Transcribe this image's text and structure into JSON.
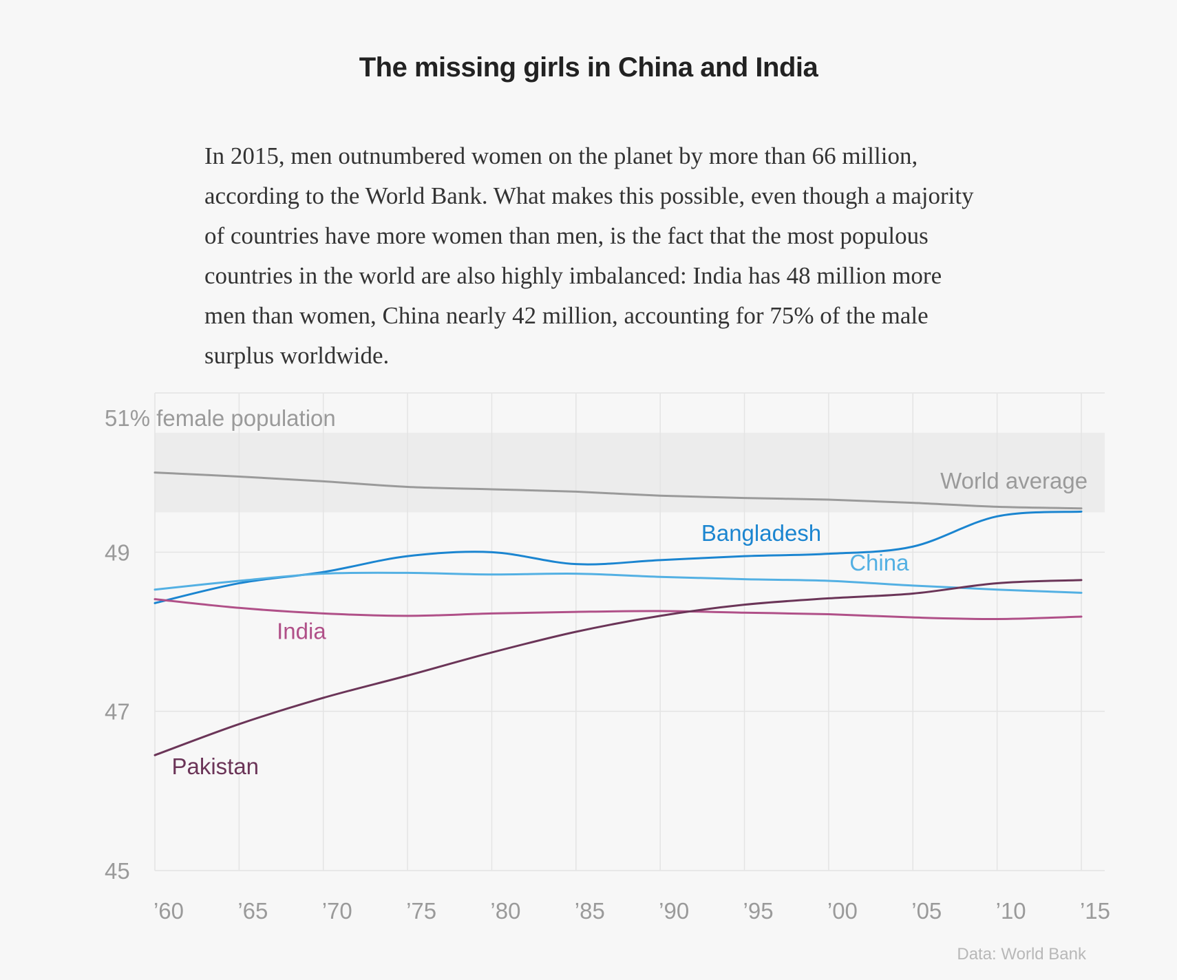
{
  "header": {
    "title": "The missing girls in China and India",
    "dek": "In 2015, men outnumbered women on the planet by more than 66 million, according to the World Bank. What makes this possible, even though a majority of countries have more women than men, is the fact that the most populous countries in the world are also highly imbalanced: India has 48 million more men than women, China nearly 42 million, accounting for 75% of the male surplus worldwide."
  },
  "source": "Data: World Bank",
  "chart_data": {
    "type": "line",
    "title": "The missing girls in China and India",
    "ylabel": "51% female population",
    "ylim": [
      45,
      51
    ],
    "xlim": [
      1960,
      2016.5
    ],
    "grid": true,
    "y_ticks": [
      {
        "value": 45,
        "label": "45"
      },
      {
        "value": 47,
        "label": "47"
      },
      {
        "value": 49,
        "label": "49"
      }
    ],
    "x_ticks": [
      {
        "value": 1960,
        "label": "’60"
      },
      {
        "value": 1965,
        "label": "’65"
      },
      {
        "value": 1970,
        "label": "’70"
      },
      {
        "value": 1975,
        "label": "’75"
      },
      {
        "value": 1980,
        "label": "’80"
      },
      {
        "value": 1985,
        "label": "’85"
      },
      {
        "value": 1990,
        "label": "’90"
      },
      {
        "value": 1995,
        "label": "’95"
      },
      {
        "value": 2000,
        "label": "’00"
      },
      {
        "value": 2005,
        "label": "’05"
      },
      {
        "value": 2010,
        "label": "’10"
      },
      {
        "value": 2015,
        "label": "’15"
      }
    ],
    "band": {
      "y0": 49.5,
      "y1": 50.5,
      "color": "#ececec"
    },
    "x": [
      1960,
      1965,
      1970,
      1975,
      1980,
      1985,
      1990,
      1995,
      2000,
      2005,
      2010,
      2015
    ],
    "series": [
      {
        "name": "World average",
        "color": "#9a9a9a",
        "values": [
          50.0,
          49.95,
          49.89,
          49.82,
          49.79,
          49.76,
          49.71,
          49.68,
          49.66,
          49.62,
          49.57,
          49.55
        ],
        "label_x": 2011,
        "label_y": 49.8,
        "label_anchor": "middle"
      },
      {
        "name": "Bangladesh",
        "color": "#1b85d0",
        "values": [
          48.36,
          48.61,
          48.75,
          48.95,
          49.0,
          48.85,
          48.9,
          48.95,
          48.98,
          49.07,
          49.45,
          49.51
        ],
        "label_x": 1996,
        "label_y": 49.14,
        "label_anchor": "middle"
      },
      {
        "name": "China",
        "color": "#53b0e3",
        "values": [
          48.53,
          48.64,
          48.73,
          48.74,
          48.72,
          48.73,
          48.69,
          48.66,
          48.64,
          48.58,
          48.53,
          48.49
        ],
        "label_x": 2003,
        "label_y": 48.77,
        "label_anchor": "middle"
      },
      {
        "name": "India",
        "color": "#b05088",
        "values": [
          48.41,
          48.3,
          48.23,
          48.2,
          48.23,
          48.25,
          48.26,
          48.24,
          48.22,
          48.18,
          48.16,
          48.19
        ],
        "label_x": 1968.7,
        "label_y": 47.91,
        "label_anchor": "middle"
      },
      {
        "name": "Pakistan",
        "color": "#6b3558",
        "values": [
          46.45,
          46.84,
          47.17,
          47.45,
          47.74,
          48.0,
          48.2,
          48.34,
          48.42,
          48.48,
          48.61,
          48.65
        ],
        "label_x": 1961,
        "label_y": 46.21,
        "label_anchor": "start"
      }
    ]
  }
}
